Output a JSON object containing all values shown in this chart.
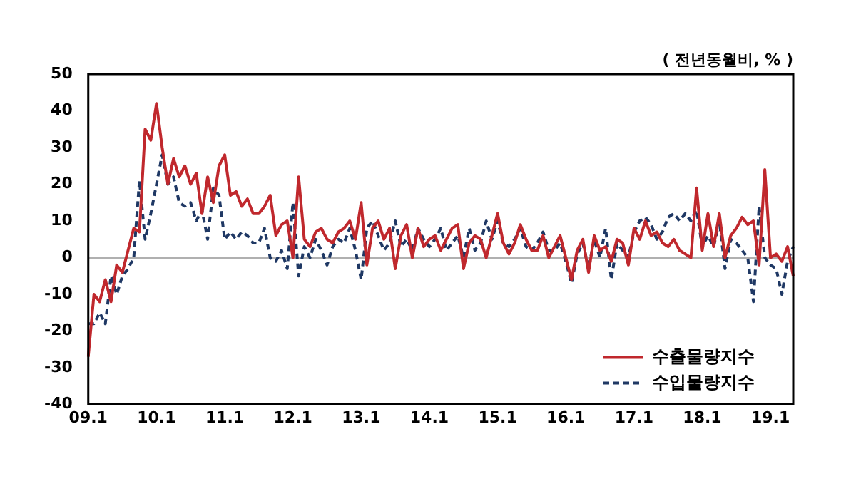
{
  "chart_data": {
    "type": "line",
    "annotations": [
      "( 전년동월비, % )"
    ],
    "categories": [
      "09.1",
      null,
      null,
      null,
      null,
      null,
      null,
      null,
      null,
      null,
      null,
      null,
      "10.1",
      null,
      null,
      null,
      null,
      null,
      null,
      null,
      null,
      null,
      null,
      null,
      "11.1",
      null,
      null,
      null,
      null,
      null,
      null,
      null,
      null,
      null,
      null,
      null,
      "12.1",
      null,
      null,
      null,
      null,
      null,
      null,
      null,
      null,
      null,
      null,
      null,
      "13.1",
      null,
      null,
      null,
      null,
      null,
      null,
      null,
      null,
      null,
      null,
      null,
      "14.1",
      null,
      null,
      null,
      null,
      null,
      null,
      null,
      null,
      null,
      null,
      null,
      "15.1",
      null,
      null,
      null,
      null,
      null,
      null,
      null,
      null,
      null,
      null,
      null,
      "16.1",
      null,
      null,
      null,
      null,
      null,
      null,
      null,
      null,
      null,
      null,
      null,
      "17.1",
      null,
      null,
      null,
      null,
      null,
      null,
      null,
      null,
      null,
      null,
      null,
      "18.1",
      null,
      null,
      null,
      null,
      null,
      null,
      null,
      null,
      null,
      null,
      null,
      "19.1",
      null,
      null,
      null,
      null
    ],
    "series": [
      {
        "name": "수출물량지수",
        "color": "#c0282d",
        "line_style": "solid",
        "values": [
          -27,
          -10,
          -12,
          -6,
          -12,
          -2,
          -4,
          2,
          8,
          7,
          35,
          32,
          42,
          30,
          20,
          27,
          22,
          25,
          20,
          23,
          12,
          22,
          15,
          25,
          28,
          17,
          18,
          14,
          16,
          12,
          12,
          14,
          17,
          6,
          9,
          10,
          0,
          22,
          5,
          3,
          7,
          8,
          5,
          4,
          7,
          8,
          10,
          5,
          15,
          -2,
          8,
          10,
          5,
          8,
          -3,
          6,
          9,
          0,
          8,
          3,
          5,
          6,
          2,
          5,
          8,
          9,
          -3,
          4,
          6,
          5,
          0,
          6,
          12,
          4,
          1,
          4,
          9,
          5,
          2,
          2,
          6,
          0,
          3,
          6,
          0,
          -6,
          2,
          5,
          -4,
          6,
          2,
          3,
          -1,
          5,
          4,
          -2,
          8,
          5,
          10,
          6,
          7,
          4,
          3,
          5,
          2,
          1,
          0,
          19,
          2,
          12,
          3,
          12,
          0,
          6,
          8,
          11,
          9,
          10,
          -2,
          24,
          0,
          1,
          -1,
          3,
          -5
        ]
      },
      {
        "name": "수입물량지수",
        "color": "#1f3864",
        "line_style": "dashed",
        "values": [
          -18,
          -18,
          -15,
          -18,
          -5,
          -10,
          -5,
          -3,
          0,
          21,
          5,
          12,
          20,
          28,
          20,
          22,
          15,
          14,
          15,
          10,
          13,
          5,
          19,
          17,
          5,
          7,
          5,
          7,
          6,
          4,
          4,
          8,
          0,
          -1,
          2,
          -3,
          15,
          -5,
          3,
          0,
          5,
          2,
          -2,
          3,
          5,
          4,
          8,
          2,
          -6,
          8,
          10,
          6,
          2,
          4,
          10,
          3,
          5,
          2,
          8,
          5,
          3,
          5,
          8,
          2,
          4,
          6,
          0,
          8,
          2,
          4,
          10,
          5,
          10,
          4,
          3,
          5,
          8,
          3,
          2,
          4,
          7,
          2,
          2,
          4,
          -1,
          -7,
          1,
          4,
          -3,
          5,
          0,
          8,
          -6,
          4,
          2,
          0,
          7,
          10,
          11,
          9,
          5,
          7,
          11,
          12,
          10,
          12,
          10,
          13,
          3,
          6,
          3,
          10,
          -3,
          5,
          4,
          2,
          0,
          -12,
          14,
          0,
          -2,
          -3,
          -10,
          -1,
          3
        ]
      }
    ],
    "ylim": [
      -40,
      50
    ],
    "yticks": [
      -40,
      -30,
      -20,
      -10,
      0,
      10,
      20,
      30,
      40,
      50
    ],
    "ref_lines": [
      {
        "axis": "y",
        "value": 0,
        "color": "#b0b0b0"
      }
    ],
    "grid": false,
    "legend": "bottom right",
    "marker": "none"
  }
}
